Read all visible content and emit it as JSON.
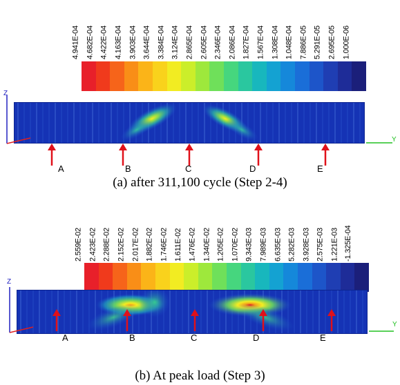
{
  "panels": [
    {
      "caption": "(a) after 311,100 cycle (Step 2-4)",
      "legend_values": [
        "4.941E-04",
        "4.682E-04",
        "4.422E-04",
        "4.163E-04",
        "3.903E-04",
        "3.644E-04",
        "3.384E-04",
        "3.124E-04",
        "2.865E-04",
        "2.605E-04",
        "2.346E-04",
        "2.086E-04",
        "1.827E-04",
        "1.567E-04",
        "1.308E-04",
        "1.048E-04",
        "7.886E-05",
        "5.291E-05",
        "2.695E-05",
        "1.000E-06"
      ],
      "markers": [
        "A",
        "B",
        "C",
        "D",
        "E"
      ],
      "axis_z": "Z",
      "axis_y": "Y"
    },
    {
      "caption": "(b) At peak load (Step 3)",
      "legend_values": [
        "2.559E-02",
        "2.423E-02",
        "2.288E-02",
        "2.152E-02",
        "2.017E-02",
        "1.882E-02",
        "1.746E-02",
        "1.611E-02",
        "1.476E-02",
        "1.340E-02",
        "1.205E-02",
        "1.070E-02",
        "9.343E-03",
        "7.989E-03",
        "6.635E-03",
        "5.282E-03",
        "3.928E-03",
        "2.575E-03",
        "1.221E-03",
        "-1.325E-04"
      ],
      "markers": [
        "A",
        "B",
        "C",
        "D",
        "E"
      ],
      "axis_z": "Z",
      "axis_y": "Y"
    }
  ],
  "colors": {
    "scale": [
      "#e8202a",
      "#f03a1c",
      "#f6641a",
      "#f98e17",
      "#fbb418",
      "#f9d21c",
      "#f2ec22",
      "#cbee2a",
      "#9ee83c",
      "#6fe05a",
      "#46d67e",
      "#2ac79f",
      "#18b7bd",
      "#14a2d2",
      "#1588da",
      "#1a6ed8",
      "#1d55c9",
      "#1f3eb3",
      "#1e2c98",
      "#1b1f7a"
    ],
    "arrow": "#e0101a",
    "mesh_bg": "#1433b8",
    "axis_z": "#2020c0",
    "axis_y": "#20c020",
    "axis_x": "#e02020"
  }
}
